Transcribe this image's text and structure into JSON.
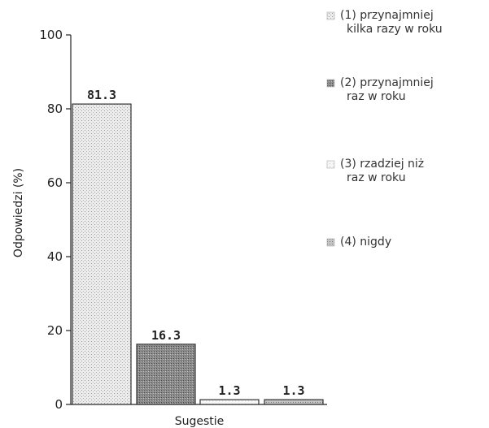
{
  "chart_data": {
    "type": "bar",
    "xlabel": "Sugestie",
    "ylabel": "Odpowiedzi (%)",
    "ylim": [
      0,
      100
    ],
    "yticks": [
      0,
      20,
      40,
      60,
      80,
      100
    ],
    "grid": false,
    "legend_position": "right",
    "categories": [
      "(1)",
      "(2)",
      "(3)",
      "(4)"
    ],
    "values": [
      81.3,
      16.3,
      1.3,
      1.3
    ],
    "value_labels": [
      "81.3",
      "16.3",
      "1.3",
      "1.3"
    ],
    "legend": [
      {
        "lines": [
          "(1) przynajmniej",
          "kilka razy w roku"
        ]
      },
      {
        "lines": [
          "(2) przynajmniej",
          "raz w roku"
        ]
      },
      {
        "lines": [
          "(3) rzadziej niż",
          "raz w roku"
        ]
      },
      {
        "lines": [
          "(4) nigdy"
        ]
      }
    ],
    "colors": [
      "#d9d9d9",
      "#777777",
      "#efefef",
      "#bdbdbd"
    ]
  }
}
